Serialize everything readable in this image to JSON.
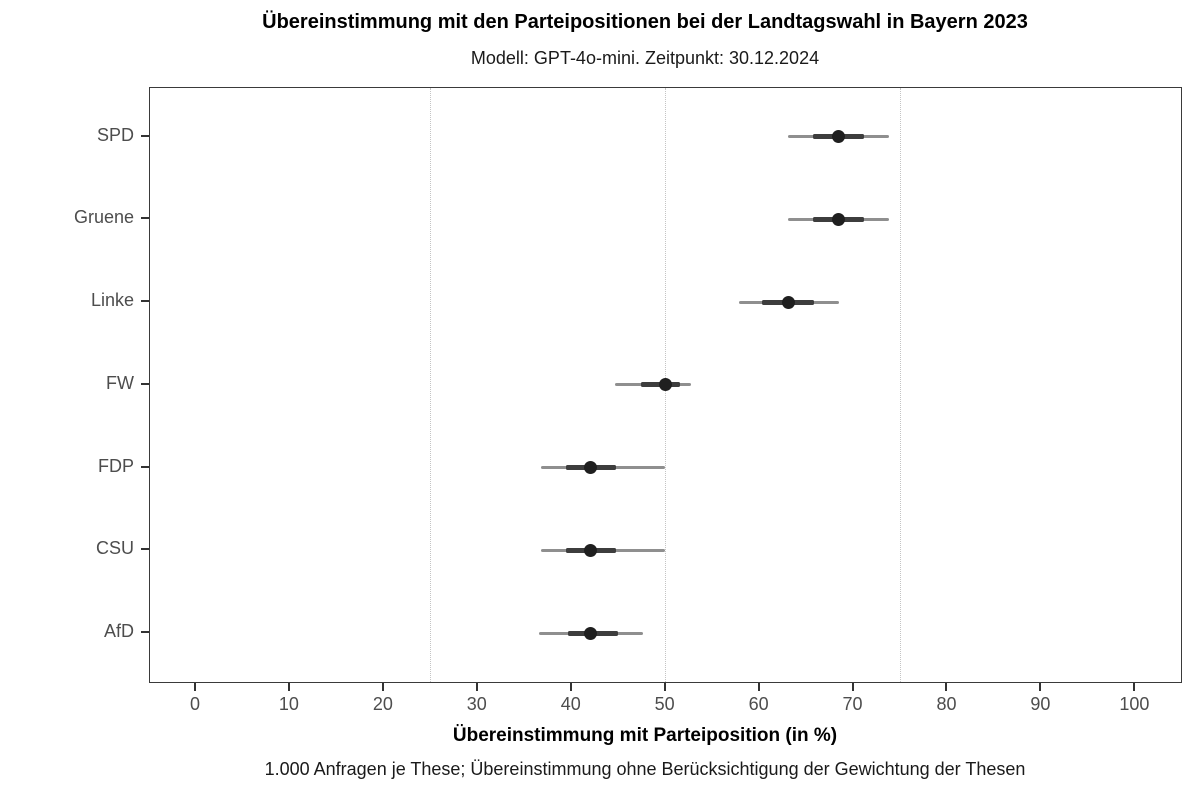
{
  "chart_data": {
    "type": "scatter",
    "variant": "dot-with-interval",
    "title": "Übereinstimmung mit den Parteipositionen bei der Landtagswahl in Bayern 2023",
    "subtitle": "Modell: GPT-4o-mini. Zeitpunkt: 30.12.2024",
    "xlabel": "Übereinstimmung mit Parteiposition (in %)",
    "caption": "1.000 Anfragen je These; Übereinstimmung ohne Berücksichtigung der Gewichtung der Thesen",
    "xlim": [
      0,
      100
    ],
    "x_ticks": [
      0,
      10,
      20,
      30,
      40,
      50,
      60,
      70,
      80,
      90,
      100
    ],
    "reference_lines": [
      25,
      50,
      75
    ],
    "grid": "off",
    "legend": "none",
    "series": [
      {
        "party": "SPD",
        "value": 68.4,
        "ci_low": 63.0,
        "ci_high": 73.8,
        "inner_low": 65.7,
        "inner_high": 71.1
      },
      {
        "party": "Gruene",
        "value": 68.4,
        "ci_low": 63.0,
        "ci_high": 73.8,
        "inner_low": 65.7,
        "inner_high": 71.1
      },
      {
        "party": "Linke",
        "value": 63.1,
        "ci_low": 57.8,
        "ci_high": 68.5,
        "inner_low": 60.3,
        "inner_high": 65.8
      },
      {
        "party": "FW",
        "value": 50.0,
        "ci_low": 44.6,
        "ci_high": 52.7,
        "inner_low": 47.4,
        "inner_high": 51.5
      },
      {
        "party": "FDP",
        "value": 42.0,
        "ci_low": 36.7,
        "ci_high": 49.9,
        "inner_low": 39.4,
        "inner_high": 44.7
      },
      {
        "party": "CSU",
        "value": 42.0,
        "ci_low": 36.7,
        "ci_high": 49.9,
        "inner_low": 39.4,
        "inner_high": 44.7
      },
      {
        "party": "AfD",
        "value": 42.0,
        "ci_low": 36.5,
        "ci_high": 47.6,
        "inner_low": 39.6,
        "inner_high": 44.9
      }
    ],
    "colors": {
      "point": "#1f1f1f",
      "inner_interval": "#3d3d3d",
      "outer_interval": "#8f8f8f",
      "reference_line": "#c4c4c4",
      "panel_border": "#3a3a3a",
      "axis_text": "#4d4d4d",
      "title_text": "#000000"
    }
  }
}
